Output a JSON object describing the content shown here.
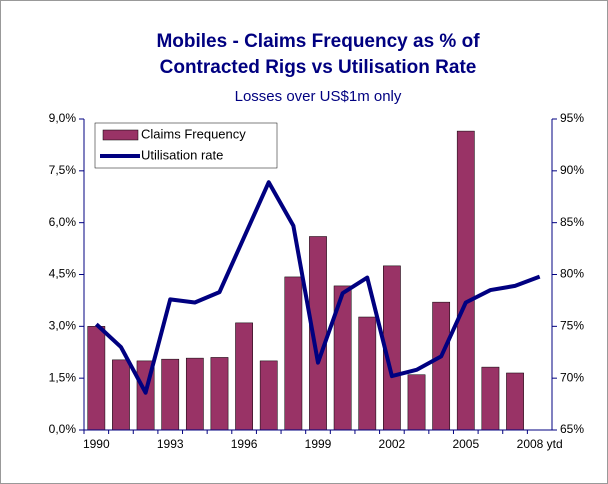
{
  "chart_data": {
    "type": "bar-line",
    "title": [
      "Mobiles - Claims Frequency as % of",
      "Contracted Rigs vs Utilisation Rate"
    ],
    "subtitle": "Losses over US$1m only",
    "categories": [
      "1990",
      null,
      null,
      "1993",
      null,
      null,
      "1996",
      null,
      null,
      "1999",
      null,
      null,
      "2002",
      null,
      null,
      "2005",
      null,
      null,
      "2008 ytd"
    ],
    "series": [
      {
        "name": "Claims Frequency",
        "type": "bar",
        "color": "#993366",
        "axis": "y",
        "values": [
          3.0,
          2.03,
          2.0,
          2.05,
          2.08,
          2.1,
          3.1,
          2.0,
          4.43,
          5.6,
          4.17,
          3.27,
          4.75,
          1.6,
          3.7,
          8.65,
          1.82,
          1.65,
          null
        ]
      },
      {
        "name": "Utilisation rate",
        "type": "line",
        "color": "#000080",
        "axis": "y2",
        "values": [
          75.2,
          73.0,
          68.6,
          77.6,
          77.3,
          78.3,
          83.6,
          88.9,
          84.7,
          71.5,
          78.2,
          79.7,
          70.2,
          70.8,
          72.1,
          77.3,
          78.5,
          78.9,
          79.8
        ]
      }
    ],
    "ylim": [
      0,
      9
    ],
    "yticks": [
      {
        "value": 0,
        "label": "0,0%"
      },
      {
        "value": 1.5,
        "label": "1,5%"
      },
      {
        "value": 3,
        "label": "3,0%"
      },
      {
        "value": 4.5,
        "label": "4,5%"
      },
      {
        "value": 6,
        "label": "6,0%"
      },
      {
        "value": 7.5,
        "label": "7,5%"
      },
      {
        "value": 9,
        "label": "9,0%"
      }
    ],
    "y2lim": [
      65,
      95
    ],
    "y2ticks": [
      {
        "value": 65,
        "label": "65%"
      },
      {
        "value": 70,
        "label": "70%"
      },
      {
        "value": 75,
        "label": "75%"
      },
      {
        "value": 80,
        "label": "80%"
      },
      {
        "value": 85,
        "label": "85%"
      },
      {
        "value": 90,
        "label": "90%"
      },
      {
        "value": 95,
        "label": "95%"
      }
    ],
    "legend": "top-left"
  }
}
